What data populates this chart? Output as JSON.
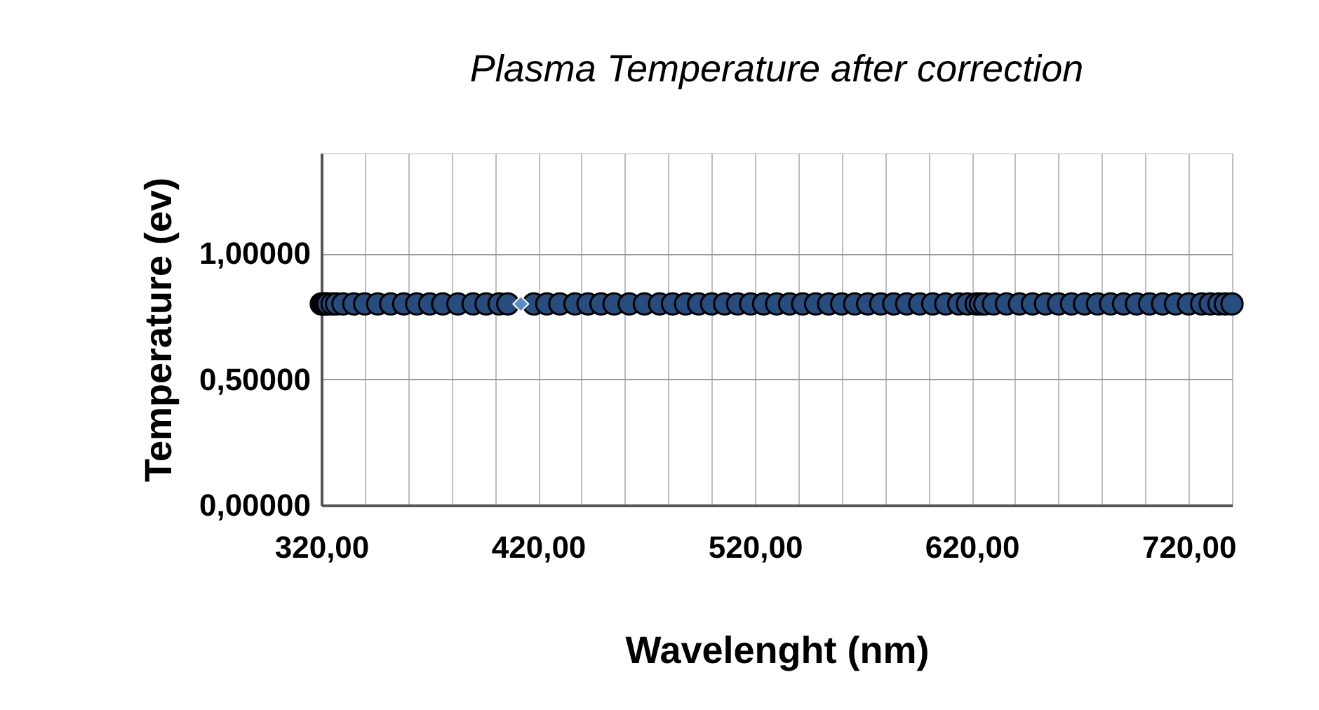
{
  "chart_data": {
    "type": "scatter",
    "title": "Plasma Temperature after correction",
    "xlabel": "Wavelenght (nm)",
    "ylabel": "Temperature  (ev)",
    "xlim": [
      320,
      740
    ],
    "xticks": [
      {
        "value": 320,
        "label": "320,00"
      },
      {
        "value": 340,
        "label": null
      },
      {
        "value": 360,
        "label": null
      },
      {
        "value": 380,
        "label": null
      },
      {
        "value": 400,
        "label": null
      },
      {
        "value": 420,
        "label": "420,00"
      },
      {
        "value": 440,
        "label": null
      },
      {
        "value": 460,
        "label": null
      },
      {
        "value": 480,
        "label": null
      },
      {
        "value": 500,
        "label": null
      },
      {
        "value": 520,
        "label": "520,00"
      },
      {
        "value": 540,
        "label": null
      },
      {
        "value": 560,
        "label": null
      },
      {
        "value": 580,
        "label": null
      },
      {
        "value": 600,
        "label": null
      },
      {
        "value": 620,
        "label": "620,00"
      },
      {
        "value": 640,
        "label": null
      },
      {
        "value": 660,
        "label": null
      },
      {
        "value": 680,
        "label": null
      },
      {
        "value": 700,
        "label": null
      },
      {
        "value": 720,
        "label": "720,00"
      },
      {
        "value": 740,
        "label": null
      }
    ],
    "ylim": [
      0,
      1.4
    ],
    "yticks": [
      {
        "value": 0,
        "label": "0,00000"
      },
      {
        "value": 0.5,
        "label": "0,50000"
      },
      {
        "value": 1.0,
        "label": "1,00000"
      }
    ],
    "grid": true,
    "series": [
      {
        "color": "#264d7e",
        "marker": "circle",
        "x": [
          320,
          321,
          322,
          323,
          325,
          327,
          330,
          335,
          340,
          346,
          352,
          358,
          364,
          370,
          376,
          383,
          390,
          396,
          402,
          406,
          418,
          424,
          430,
          437,
          443,
          449,
          455,
          462,
          469,
          476,
          482,
          488,
          494,
          500,
          506,
          512,
          518,
          524,
          530,
          536,
          542,
          548,
          554,
          560,
          566,
          572,
          578,
          584,
          590,
          596,
          602,
          608,
          614,
          618,
          622,
          624,
          626,
          630,
          636,
          642,
          648,
          654,
          660,
          666,
          672,
          678,
          684,
          690,
          696,
          702,
          708,
          714,
          720,
          726,
          730,
          734,
          737,
          740
        ],
        "values": [
          0.8,
          0.8,
          0.8,
          0.8,
          0.8,
          0.8,
          0.8,
          0.8,
          0.8,
          0.8,
          0.8,
          0.8,
          0.8,
          0.8,
          0.8,
          0.8,
          0.8,
          0.8,
          0.8,
          0.8,
          0.8,
          0.8,
          0.8,
          0.8,
          0.8,
          0.8,
          0.8,
          0.8,
          0.8,
          0.8,
          0.8,
          0.8,
          0.8,
          0.8,
          0.8,
          0.8,
          0.8,
          0.8,
          0.8,
          0.8,
          0.8,
          0.8,
          0.8,
          0.8,
          0.8,
          0.8,
          0.8,
          0.8,
          0.8,
          0.8,
          0.8,
          0.8,
          0.8,
          0.8,
          0.8,
          0.8,
          0.8,
          0.8,
          0.8,
          0.8,
          0.8,
          0.8,
          0.8,
          0.8,
          0.8,
          0.8,
          0.8,
          0.8,
          0.8,
          0.8,
          0.8,
          0.8,
          0.8,
          0.8,
          0.8,
          0.8,
          0.8,
          0.8
        ]
      },
      {
        "color": "#5b8bc9",
        "marker": "diamond",
        "x": [
          412
        ],
        "values": [
          0.8
        ]
      }
    ]
  }
}
